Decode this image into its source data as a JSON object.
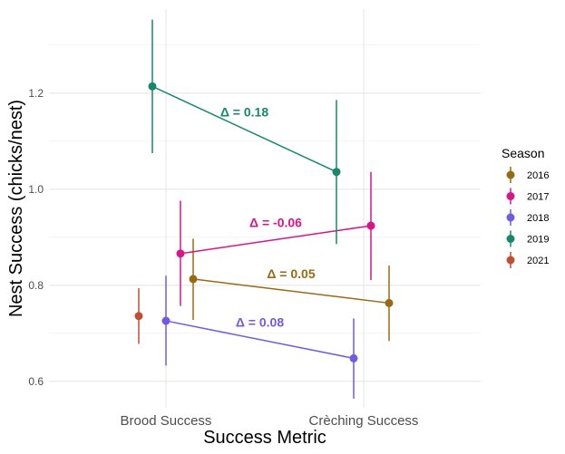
{
  "chart_data": {
    "type": "scatter",
    "title": "",
    "xlabel": "Success Metric",
    "ylabel": "Nest Success (chicks/nest)",
    "categories": [
      "Brood Success",
      "Crèching Success"
    ],
    "ylim": [
      0.545,
      1.375
    ],
    "yticks": [
      0.6,
      0.8,
      1.0,
      1.2
    ],
    "ytick_labels": [
      "0.6",
      "0.8",
      "1.0",
      "1.2"
    ],
    "grid": true,
    "legend_title": "Season",
    "legend_position": "right",
    "series": [
      {
        "name": "2016",
        "color": "#9A6A12",
        "points": [
          {
            "category": "Brood Success",
            "y": 0.813,
            "ymin": 0.728,
            "ymax": 0.897
          },
          {
            "category": "Crèching Success",
            "y": 0.763,
            "ymin": 0.684,
            "ymax": 0.841
          }
        ],
        "delta_label": "Δ =  0.05"
      },
      {
        "name": "2017",
        "color": "#D6158A",
        "points": [
          {
            "category": "Brood Success",
            "y": 0.866,
            "ymin": 0.757,
            "ymax": 0.976
          },
          {
            "category": "Crèching Success",
            "y": 0.924,
            "ymin": 0.811,
            "ymax": 1.036
          }
        ],
        "delta_label": "Δ =  -0.06"
      },
      {
        "name": "2018",
        "color": "#6F5CE0",
        "points": [
          {
            "category": "Brood Success",
            "y": 0.726,
            "ymin": 0.633,
            "ymax": 0.82
          },
          {
            "category": "Crèching Success",
            "y": 0.648,
            "ymin": 0.564,
            "ymax": 0.731
          }
        ],
        "delta_label": "Δ =  0.08"
      },
      {
        "name": "2019",
        "color": "#15896A",
        "points": [
          {
            "category": "Brood Success",
            "y": 1.214,
            "ymin": 1.075,
            "ymax": 1.353
          },
          {
            "category": "Crèching Success",
            "y": 1.036,
            "ymin": 0.886,
            "ymax": 1.186
          }
        ],
        "delta_label": "Δ =  0.18"
      },
      {
        "name": "2021",
        "color": "#C24D2F",
        "points": [
          {
            "category": "Brood Success",
            "y": 0.736,
            "ymin": 0.678,
            "ymax": 0.794
          }
        ],
        "delta_label": ""
      }
    ]
  }
}
